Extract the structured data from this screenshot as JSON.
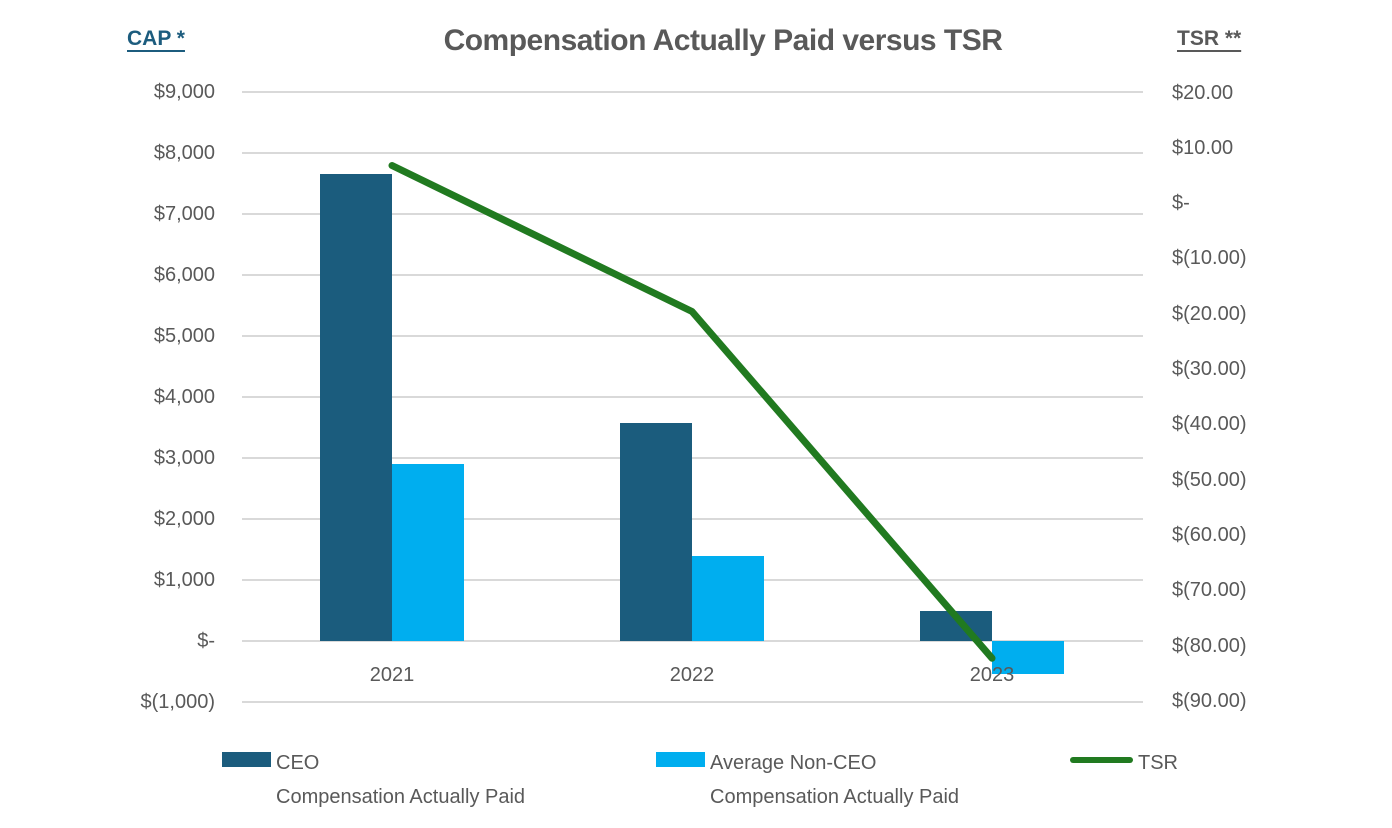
{
  "chart_data": {
    "type": "combo-bar-line",
    "title": "Compensation Actually Paid versus TSR",
    "categories": [
      "2021",
      "2022",
      "2023"
    ],
    "text_color": "#595959",
    "gridline_color": "#D9D9D9",
    "left_axis": {
      "title": "CAP *",
      "title_color": "#1C5C7E",
      "range": [
        -1000,
        9000
      ],
      "ticks": [
        {
          "label": "$9,000",
          "value": 9000
        },
        {
          "label": "$8,000",
          "value": 8000
        },
        {
          "label": "$7,000",
          "value": 7000
        },
        {
          "label": "$6,000",
          "value": 6000
        },
        {
          "label": "$5,000",
          "value": 5000
        },
        {
          "label": "$4,000",
          "value": 4000
        },
        {
          "label": "$3,000",
          "value": 3000
        },
        {
          "label": "$2,000",
          "value": 2000
        },
        {
          "label": "$1,000",
          "value": 1000
        },
        {
          "label": "$-",
          "value": 0
        },
        {
          "label": "$(1,000)",
          "value": -1000
        }
      ]
    },
    "right_axis": {
      "title": "TSR **",
      "title_color": "#595959",
      "range": [
        -90,
        20
      ],
      "ticks": [
        {
          "label": "$20.00",
          "value": 20
        },
        {
          "label": "$10.00",
          "value": 10
        },
        {
          "label": "$-",
          "value": 0
        },
        {
          "label": "$(10.00)",
          "value": -10
        },
        {
          "label": "$(20.00)",
          "value": -20
        },
        {
          "label": "$(30.00)",
          "value": -30
        },
        {
          "label": "$(40.00)",
          "value": -40
        },
        {
          "label": "$(50.00)",
          "value": -50
        },
        {
          "label": "$(60.00)",
          "value": -60
        },
        {
          "label": "$(70.00)",
          "value": -70
        },
        {
          "label": "$(80.00)",
          "value": -80
        },
        {
          "label": "$(90.00)",
          "value": -90
        }
      ]
    },
    "series": [
      {
        "key": "ceo",
        "name": "CEO Compensation Actually Paid",
        "legend_lines": [
          "CEO",
          "Compensation Actually Paid"
        ],
        "type": "bar",
        "axis": "left",
        "color": "#1B5C7D",
        "values": [
          7650,
          3570,
          490
        ]
      },
      {
        "key": "non-ceo",
        "name": "Average Non-CEO Compensation Actually Paid",
        "legend_lines": [
          "Average Non-CEO",
          "Compensation Actually Paid"
        ],
        "type": "bar",
        "axis": "left",
        "color": "#00AEEF",
        "values": [
          2900,
          1400,
          -540
        ]
      },
      {
        "key": "tsr",
        "name": "TSR",
        "legend_lines": [
          "TSR"
        ],
        "type": "line",
        "axis": "right",
        "color": "#217A20",
        "values": [
          6.8,
          -19.6,
          -82.3
        ]
      }
    ]
  }
}
